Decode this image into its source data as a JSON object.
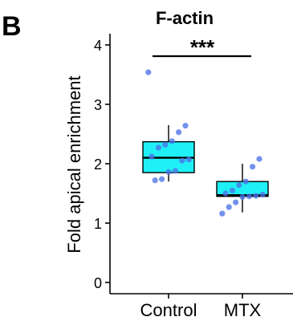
{
  "panel_label": "B",
  "chart_data": {
    "type": "box",
    "title": "F-actin",
    "xlabel": "",
    "ylabel": "Fold apical enrichment",
    "ylim": [
      0,
      4
    ],
    "yticks": [
      0,
      1,
      2,
      3,
      4
    ],
    "grid": false,
    "significance": "***",
    "groups": [
      {
        "name": "Control",
        "box": {
          "whisker_low": 1.7,
          "q1": 1.85,
          "median": 2.1,
          "q3": 2.37,
          "whisker_high": 2.65
        },
        "points": [
          3.54,
          2.64,
          2.53,
          2.38,
          2.32,
          2.27,
          2.12,
          2.07,
          2.05,
          1.88,
          1.86,
          1.74,
          1.72
        ]
      },
      {
        "name": "MTX",
        "box": {
          "whisker_low": 1.18,
          "q1": 1.45,
          "median": 1.47,
          "q3": 1.7,
          "whisker_high": 2.0
        },
        "points": [
          2.08,
          1.95,
          1.7,
          1.64,
          1.55,
          1.5,
          1.48,
          1.46,
          1.45,
          1.44,
          1.35,
          1.27,
          1.16
        ]
      }
    ],
    "colors": {
      "box_fill": "#1ff0f5",
      "points": "#4c73e8",
      "line": "#000000"
    }
  }
}
